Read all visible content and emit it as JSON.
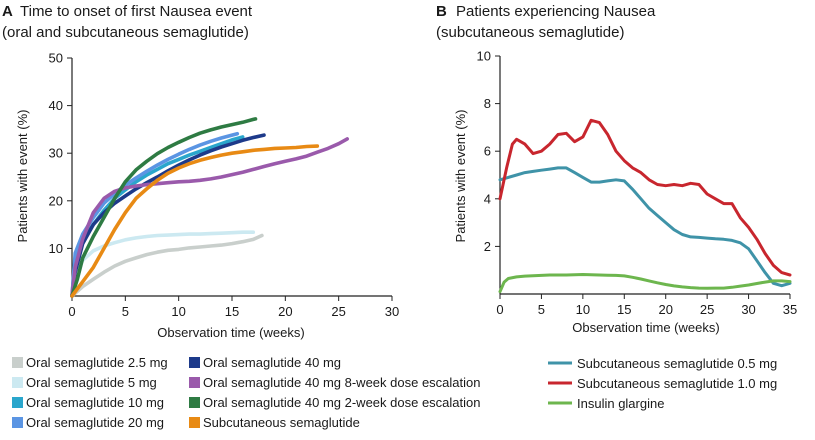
{
  "panel_a": {
    "letter": "A",
    "title_line1": "Time to onset of first Nausea event",
    "title_line2": "(oral and subcutaneous semaglutide)",
    "ylabel": "Patients with event (%)",
    "xlabel": "Observation time (weeks)",
    "legend": [
      {
        "label": "Oral semaglutide 2.5 mg",
        "color": "#c9cfcc"
      },
      {
        "label": "Oral semaglutide 5 mg",
        "color": "#cce9f1"
      },
      {
        "label": "Oral semaglutide 10 mg",
        "color": "#2aa6cc"
      },
      {
        "label": "Oral semaglutide 20 mg",
        "color": "#5b95e3"
      },
      {
        "label": "Oral semaglutide 40 mg",
        "color": "#1d3a8a"
      },
      {
        "label": "Oral semaglutide 40 mg 8-week dose escalation",
        "color": "#9a5aab"
      },
      {
        "label": "Oral semaglutide 40 mg 2-week dose escalation",
        "color": "#2e7b43"
      },
      {
        "label": "Subcutaneous semaglutide",
        "color": "#e88a14"
      }
    ]
  },
  "panel_b": {
    "letter": "B",
    "title_line1": "Patients experiencing Nausea",
    "title_line2": "(subcutaneous semaglutide)",
    "ylabel": "Patients with event (%)",
    "xlabel": "Observation time (weeks)",
    "legend": [
      {
        "label": "Subcutaneous semaglutide 0.5 mg",
        "color": "#3f93a8"
      },
      {
        "label": "Subcutaneous semaglutide 1.0 mg",
        "color": "#c8262e"
      },
      {
        "label": "Insulin glargine",
        "color": "#6db64e"
      }
    ]
  },
  "chart_data": [
    {
      "type": "line",
      "title": "Time to onset of first Nausea event",
      "subtitle": "(oral and subcutaneous semaglutide)",
      "xlabel": "Observation time (weeks)",
      "ylabel": "Patients with event (%)",
      "xlim": [
        0,
        30
      ],
      "ylim": [
        0,
        50
      ],
      "xticks": [
        0,
        5,
        10,
        15,
        20,
        25,
        30
      ],
      "yticks": [
        10,
        20,
        30,
        40,
        50
      ],
      "grid": false,
      "legend_position": "bottom",
      "series": [
        {
          "name": "Oral semaglutide 2.5 mg",
          "color": "#c9cfcc",
          "x": [
            0,
            1,
            2,
            3,
            4,
            5,
            6,
            7,
            8,
            9,
            10,
            11,
            12,
            13,
            14,
            15,
            16,
            17,
            17.8
          ],
          "y": [
            0,
            2,
            3.5,
            5,
            6.3,
            7.3,
            8,
            8.7,
            9.2,
            9.6,
            9.8,
            10.1,
            10.3,
            10.5,
            10.7,
            11,
            11.4,
            11.9,
            12.7
          ]
        },
        {
          "name": "Oral semaglutide 5 mg",
          "color": "#cce9f1",
          "x": [
            0,
            0.5,
            1,
            2,
            3,
            4,
            5,
            6,
            7,
            8,
            9,
            10,
            11,
            12,
            13,
            14,
            15,
            16,
            17
          ],
          "y": [
            0,
            5,
            7.5,
            9.5,
            10.5,
            11.2,
            11.8,
            12.2,
            12.5,
            12.7,
            12.8,
            12.9,
            13,
            13,
            13.1,
            13.2,
            13.3,
            13.4,
            13.4
          ]
        },
        {
          "name": "Oral semaglutide 10 mg",
          "color": "#2aa6cc",
          "x": [
            0,
            0.3,
            1,
            2,
            3,
            4,
            5,
            6,
            7,
            8,
            9,
            10,
            11,
            12,
            13,
            14,
            15,
            16
          ],
          "y": [
            0,
            8,
            12,
            15,
            18,
            20.5,
            22.3,
            24,
            25.4,
            26.6,
            27.8,
            28.7,
            29.6,
            30.4,
            31.2,
            32,
            32.8,
            33.4
          ]
        },
        {
          "name": "Oral semaglutide 20 mg",
          "color": "#5b95e3",
          "x": [
            0,
            0.3,
            1,
            2,
            3,
            4,
            5,
            6,
            7,
            8,
            9,
            10,
            11,
            12,
            13,
            14,
            15,
            15.5
          ],
          "y": [
            0,
            9,
            13,
            16.5,
            19.5,
            21.5,
            23.3,
            24.8,
            26.2,
            27.5,
            28.7,
            29.8,
            30.8,
            31.7,
            32.5,
            33.2,
            33.8,
            34.1
          ]
        },
        {
          "name": "Oral semaglutide 40 mg",
          "color": "#1d3a8a",
          "x": [
            0,
            0.3,
            1,
            2,
            3,
            4,
            5,
            6,
            7,
            8,
            9,
            10,
            11,
            12,
            13,
            14,
            15,
            16,
            17,
            18
          ],
          "y": [
            0,
            5,
            11,
            15,
            17.5,
            19.5,
            21,
            22.5,
            23.8,
            25,
            26.3,
            27.5,
            28.6,
            29.6,
            30.5,
            31.3,
            32,
            32.7,
            33.3,
            33.8
          ]
        },
        {
          "name": "Oral semaglutide 40 mg 8-week dose escalation",
          "color": "#9a5aab",
          "x": [
            0,
            0.3,
            1,
            2,
            3,
            4,
            5,
            6,
            7,
            8,
            9,
            10,
            11,
            12,
            13,
            14,
            15,
            16,
            17,
            18,
            19,
            20,
            21,
            22,
            23,
            24,
            25,
            25.8
          ],
          "y": [
            0,
            6,
            12,
            17.5,
            20.5,
            22,
            22.7,
            23.1,
            23.4,
            23.6,
            23.8,
            24,
            24.1,
            24.3,
            24.6,
            25,
            25.5,
            26,
            26.6,
            27.2,
            27.8,
            28.3,
            28.8,
            29.4,
            30.2,
            31,
            32,
            33
          ]
        },
        {
          "name": "Oral semaglutide 40 mg 2-week dose escalation",
          "color": "#2e7b43",
          "x": [
            0,
            0.5,
            1,
            2,
            3,
            4,
            5,
            6,
            7,
            8,
            9,
            10,
            11,
            12,
            13,
            14,
            15,
            16,
            17,
            17.2
          ],
          "y": [
            0,
            3.5,
            8,
            12.5,
            16.5,
            20.5,
            24,
            26.5,
            28.3,
            29.9,
            31.2,
            32.3,
            33.3,
            34.2,
            34.9,
            35.5,
            36,
            36.5,
            37.1,
            37.2
          ]
        },
        {
          "name": "Subcutaneous semaglutide",
          "color": "#e88a14",
          "x": [
            0,
            1,
            2,
            3,
            4,
            5,
            6,
            7,
            8,
            9,
            10,
            11,
            12,
            13,
            14,
            15,
            16,
            17,
            18,
            19,
            20,
            21,
            22,
            23
          ],
          "y": [
            0,
            3,
            6,
            10,
            14,
            17.5,
            20.5,
            22.5,
            24.3,
            25.8,
            26.9,
            27.8,
            28.5,
            29.1,
            29.6,
            30,
            30.3,
            30.6,
            30.8,
            31,
            31.1,
            31.2,
            31.4,
            31.5
          ]
        }
      ]
    },
    {
      "type": "line",
      "title": "Patients experiencing Nausea",
      "subtitle": "(subcutaneous semaglutide)",
      "xlabel": "Observation time (weeks)",
      "ylabel": "Patients with event (%)",
      "xlim": [
        0,
        35
      ],
      "ylim": [
        0,
        10
      ],
      "xticks": [
        0,
        5,
        10,
        15,
        20,
        25,
        30,
        35
      ],
      "yticks": [
        2,
        4,
        6,
        8,
        10
      ],
      "grid": false,
      "legend_position": "bottom",
      "series": [
        {
          "name": "Subcutaneous semaglutide 0.5 mg",
          "color": "#3f93a8",
          "x": [
            0,
            1,
            2,
            3,
            4,
            5,
            6,
            7,
            8,
            9,
            10,
            11,
            12,
            13,
            14,
            15,
            16,
            17,
            18,
            19,
            20,
            21,
            22,
            23,
            24,
            25,
            26,
            27,
            28,
            29,
            30,
            31,
            32,
            33,
            34,
            35
          ],
          "y": [
            4.8,
            4.9,
            5.0,
            5.1,
            5.15,
            5.2,
            5.25,
            5.3,
            5.3,
            5.1,
            4.9,
            4.7,
            4.7,
            4.75,
            4.8,
            4.75,
            4.4,
            4.0,
            3.6,
            3.3,
            3.0,
            2.7,
            2.5,
            2.4,
            2.38,
            2.35,
            2.32,
            2.3,
            2.25,
            2.15,
            1.9,
            1.4,
            0.9,
            0.45,
            0.35,
            0.45
          ]
        },
        {
          "name": "Subcutaneous semaglutide 1.0 mg",
          "color": "#c8262e",
          "x": [
            0,
            0.8,
            1.5,
            2,
            3,
            4,
            5,
            6,
            7,
            8,
            9,
            10,
            11,
            12,
            13,
            14,
            15,
            16,
            17,
            18,
            19,
            20,
            21,
            22,
            23,
            24,
            25,
            26,
            27,
            28,
            29,
            30,
            31,
            32,
            33,
            34,
            35
          ],
          "y": [
            4.0,
            5.3,
            6.3,
            6.5,
            6.3,
            5.9,
            6.0,
            6.3,
            6.7,
            6.75,
            6.4,
            6.6,
            7.3,
            7.2,
            6.7,
            6.0,
            5.6,
            5.3,
            5.1,
            4.8,
            4.6,
            4.55,
            4.6,
            4.55,
            4.65,
            4.6,
            4.2,
            4.0,
            3.8,
            3.8,
            3.2,
            2.8,
            2.3,
            1.7,
            1.2,
            0.9,
            0.8
          ]
        },
        {
          "name": "Insulin glargine",
          "color": "#6db64e",
          "x": [
            0,
            0.5,
            1,
            2,
            3,
            4,
            5,
            6,
            7,
            8,
            9,
            10,
            11,
            12,
            13,
            14,
            15,
            16,
            17,
            18,
            19,
            20,
            21,
            22,
            23,
            24,
            25,
            26,
            27,
            28,
            29,
            30,
            31,
            32,
            33,
            34,
            35
          ],
          "y": [
            0.1,
            0.5,
            0.65,
            0.72,
            0.75,
            0.77,
            0.78,
            0.8,
            0.8,
            0.8,
            0.81,
            0.82,
            0.81,
            0.8,
            0.79,
            0.78,
            0.76,
            0.7,
            0.63,
            0.55,
            0.47,
            0.4,
            0.34,
            0.3,
            0.27,
            0.25,
            0.24,
            0.25,
            0.25,
            0.28,
            0.33,
            0.38,
            0.44,
            0.5,
            0.55,
            0.55,
            0.52
          ]
        }
      ]
    }
  ]
}
